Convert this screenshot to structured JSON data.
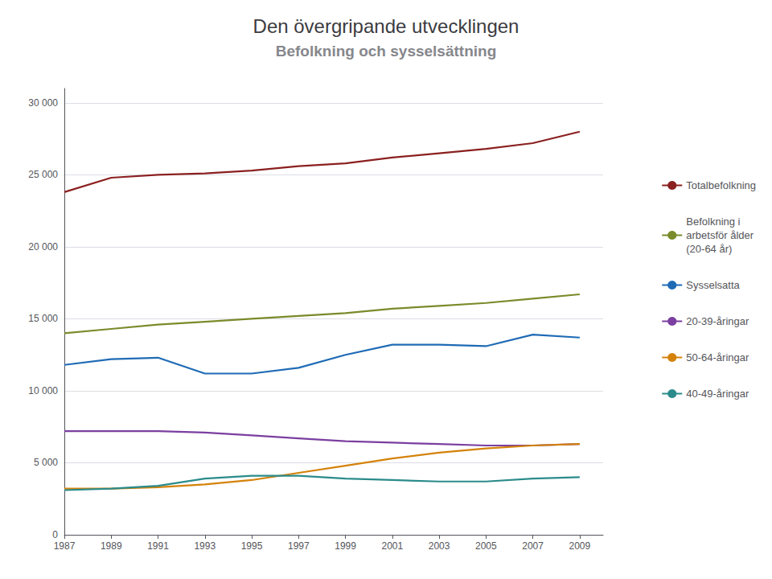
{
  "chart_data": {
    "type": "line",
    "title": "Den övergripande utvecklingen",
    "subtitle": "Befolkning och sysselsättning",
    "x": [
      1987,
      1989,
      1991,
      1993,
      1995,
      1997,
      1999,
      2001,
      2003,
      2005,
      2007,
      2009
    ],
    "series": [
      {
        "name": "Totalbefolkning",
        "color": "#8B2020",
        "values": [
          23800,
          24800,
          25000,
          25100,
          25300,
          25600,
          25800,
          26200,
          26500,
          26800,
          27200,
          28000
        ]
      },
      {
        "name": "Befolkning i\narbetsför ålder\n(20-64 år)",
        "color": "#7A8B2B",
        "values": [
          14000,
          14300,
          14600,
          14800,
          15000,
          15200,
          15400,
          15700,
          15900,
          16100,
          16400,
          16700
        ]
      },
      {
        "name": "Sysselsatta",
        "color": "#1F6BB5",
        "values": [
          11800,
          12200,
          12300,
          11200,
          11200,
          11600,
          12500,
          13200,
          13200,
          13100,
          13900,
          13700
        ]
      },
      {
        "name": "20-39-åringar",
        "color": "#7B3FA0",
        "values": [
          7200,
          7200,
          7200,
          7100,
          6900,
          6700,
          6500,
          6400,
          6300,
          6200,
          6200,
          6300
        ]
      },
      {
        "name": "50-64-åringar",
        "color": "#D4820A",
        "values": [
          3200,
          3200,
          3300,
          3500,
          3800,
          4300,
          4800,
          5300,
          5700,
          6000,
          6200,
          6300
        ]
      },
      {
        "name": "40-49-åringar",
        "color": "#2B8B8B",
        "values": [
          3100,
          3200,
          3400,
          3900,
          4100,
          4100,
          3900,
          3800,
          3700,
          3700,
          3900,
          4000
        ]
      }
    ],
    "xlim": [
      1987,
      2010
    ],
    "xticks": [
      1987,
      1989,
      1991,
      1993,
      1995,
      1997,
      1999,
      2001,
      2003,
      2005,
      2007,
      2009
    ],
    "ylim": [
      0,
      31000
    ],
    "yticks": [
      0,
      {
        "value": 5000,
        "label": "5 000"
      },
      {
        "value": 10000,
        "label": "10 000"
      },
      {
        "value": 15000,
        "label": "15 000"
      },
      {
        "value": 20000,
        "label": "20 000"
      },
      {
        "value": 25000,
        "label": "25 000"
      },
      {
        "value": 30000,
        "label": "30 000"
      }
    ],
    "grid": true,
    "legend": "right"
  }
}
